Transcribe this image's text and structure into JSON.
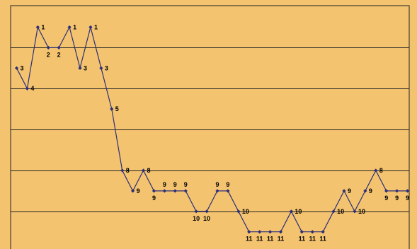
{
  "colors": {
    "background": "#f4c36f",
    "plot_area": "#f4c36f",
    "line": "#2b2f7a",
    "marker": "#2b2f7a",
    "grid": "#222222",
    "frame": "#222222",
    "label": "#000000"
  },
  "chart_data": {
    "type": "line",
    "title": "",
    "xlabel": "",
    "ylabel": "",
    "y_axis": "inverted rank scale (1 at top)",
    "ylim": [
      0,
      12
    ],
    "grid": "horizontal lines every 2 units, no tick labels",
    "legend": "none",
    "marker": "diamond",
    "series": [
      {
        "values": [
          3,
          4,
          1,
          2,
          2,
          1,
          3,
          1,
          3,
          5,
          8,
          9,
          8,
          9,
          9,
          9,
          9,
          10,
          10,
          9,
          9,
          10,
          11,
          11,
          11,
          11,
          10,
          11,
          11,
          11,
          10,
          9,
          10,
          9,
          8,
          9,
          9,
          9
        ],
        "labels": [
          "3",
          "4",
          "1",
          "2",
          "2",
          "1",
          "3",
          "1",
          "3",
          "5",
          "8",
          "9",
          "8",
          "9",
          "9",
          "9",
          "9",
          "10",
          "10",
          "9",
          "9",
          "10",
          "11",
          "11",
          "11",
          "11",
          "10",
          "11",
          "11",
          "11",
          "10",
          "9",
          "10",
          "9",
          "8",
          "9",
          "9",
          "9"
        ],
        "label_positions": [
          "right",
          "right",
          "right",
          "below",
          "below",
          "right",
          "right",
          "right",
          "right",
          "right",
          "right",
          "right",
          "right",
          "below",
          "above",
          "above",
          "above",
          "below",
          "below",
          "above",
          "above",
          "right",
          "below",
          "below",
          "below",
          "below",
          "right",
          "below",
          "below",
          "below",
          "right",
          "right",
          "right",
          "right",
          "right",
          "below",
          "below",
          "below"
        ]
      }
    ]
  }
}
